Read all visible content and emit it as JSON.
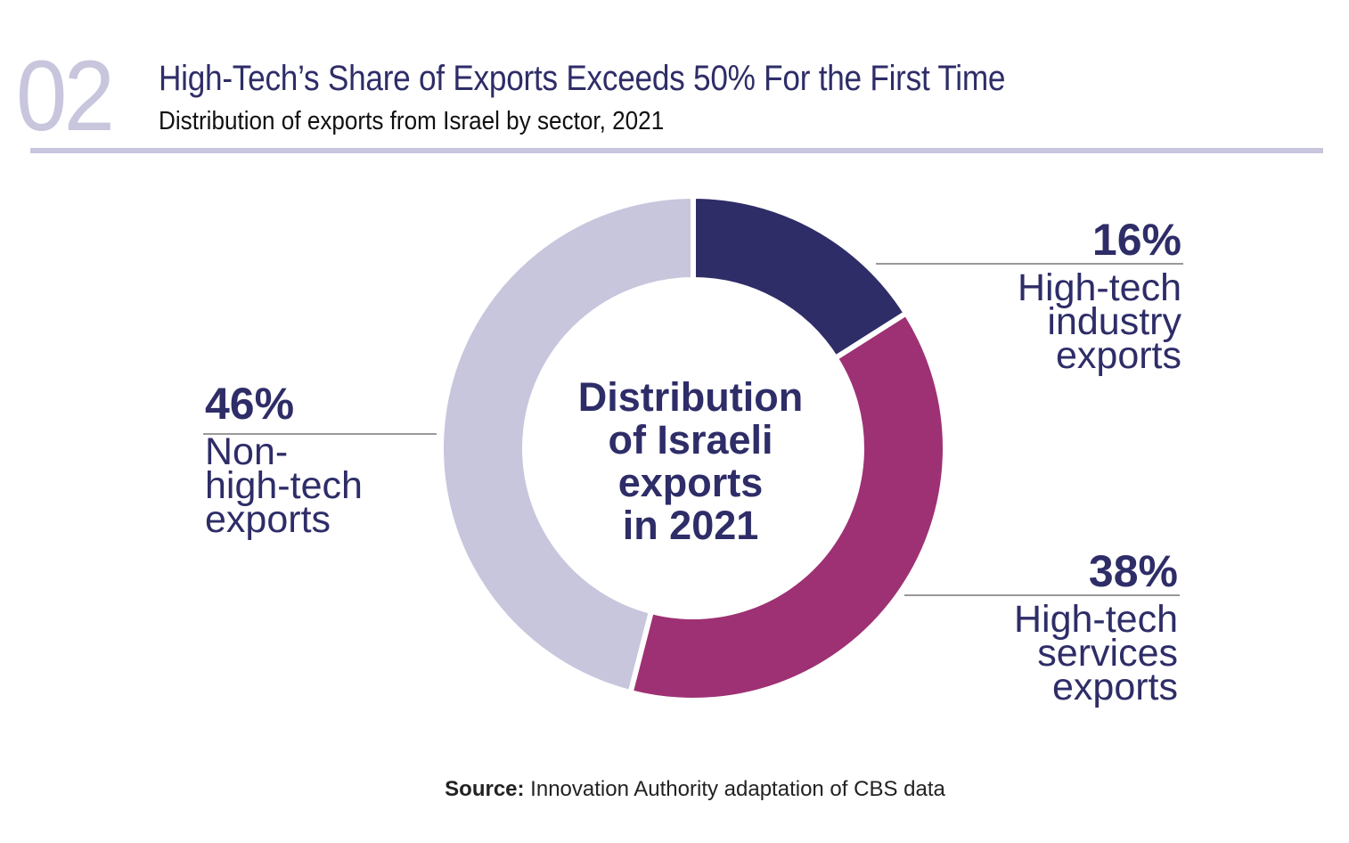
{
  "header": {
    "number": "02",
    "title": "High-Tech’s Share of Exports Exceeds 50% For the First Time",
    "subtitle": "Distribution of exports from Israel by sector, 2021"
  },
  "chart_data": {
    "type": "pie",
    "donut": true,
    "center_label": [
      "Distribution",
      "of Israeli",
      "exports",
      "in 2021"
    ],
    "categories": [
      "High-tech industry exports",
      "High-tech services exports",
      "Non-high-tech exports"
    ],
    "values": [
      16,
      38,
      46
    ],
    "value_labels": [
      "16%",
      "38%",
      "46%"
    ],
    "label_lines": [
      [
        "High-tech",
        "industry",
        "exports"
      ],
      [
        "High-tech",
        "services",
        "exports"
      ],
      [
        "Non-",
        "high-tech",
        "exports"
      ]
    ],
    "colors": [
      "#2e2d68",
      "#9e3174",
      "#c8c6dd"
    ],
    "start": "12 o'clock, clockwise"
  },
  "source": {
    "label": "Source:",
    "text": " Innovation Authority adaptation of CBS data"
  }
}
